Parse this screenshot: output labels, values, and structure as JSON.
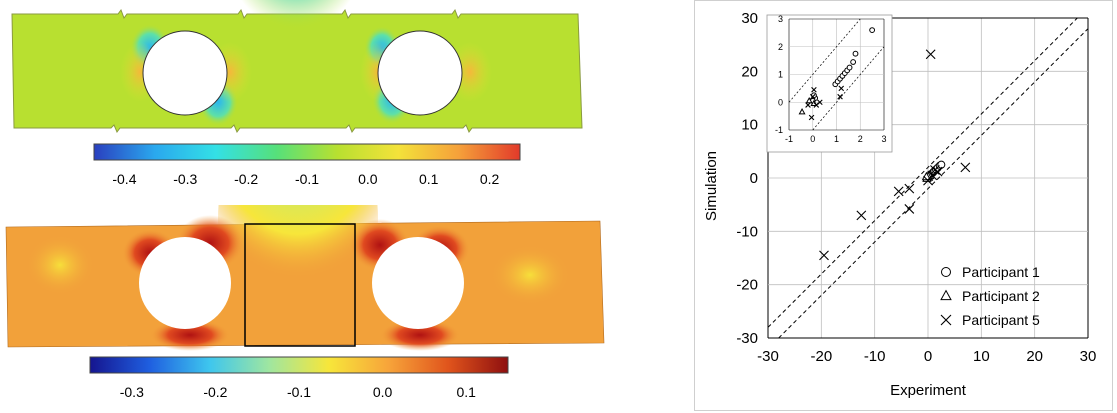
{
  "colors": {
    "plate_top_bg": "#b8e030",
    "plate_bottom_bg": "#f2a13a",
    "frame": "#000000",
    "grid": "#bfbfbf",
    "diag": "#000000"
  },
  "contour_top": {
    "colorbar_ticks": [
      "-0.4",
      "-0.3",
      "-0.2",
      "-0.1",
      "0.0",
      "0.1",
      "0.2"
    ],
    "colorbar_stops": [
      "#2a3fbf",
      "#2aa8ee",
      "#33e0e6",
      "#56e07a",
      "#b8e030",
      "#f4e23a",
      "#f5a03a",
      "#e23a2a"
    ]
  },
  "contour_bottom": {
    "colorbar_ticks": [
      "-0.3",
      "-0.2",
      "-0.1",
      "0.0",
      "0.1"
    ],
    "colorbar_stops": [
      "#15158f",
      "#1f5fe0",
      "#3ec6ee",
      "#9fe6a0",
      "#f7e63a",
      "#f7a43a",
      "#e0541c",
      "#8e0f0f"
    ]
  },
  "chart_data": {
    "type": "scatter",
    "title": "",
    "xlabel": "Experiment",
    "ylabel": "Simulation",
    "xlim": [
      -30,
      30
    ],
    "ylim": [
      -30,
      30
    ],
    "x_ticks": [
      "-30",
      "-20",
      "-10",
      "0",
      "10",
      "20",
      "30"
    ],
    "y_ticks": [
      "-30",
      "-20",
      "-10",
      "0",
      "10",
      "20",
      "30"
    ],
    "grid": true,
    "legend_position": "bottom-right",
    "series": [
      {
        "name": "Participant 1",
        "marker": "circle",
        "points": [
          [
            0.2,
            0.3
          ],
          [
            0.5,
            0.6
          ],
          [
            0.8,
            0.9
          ],
          [
            1.0,
            1.1
          ],
          [
            1.2,
            1.3
          ],
          [
            1.5,
            1.6
          ],
          [
            1.8,
            1.9
          ],
          [
            2.2,
            2.3
          ],
          [
            2.5,
            2.5
          ],
          [
            0.1,
            0.2
          ],
          [
            0.3,
            0.2
          ]
        ]
      },
      {
        "name": "Participant 2",
        "marker": "triangle",
        "points": [
          [
            0.1,
            0.1
          ],
          [
            -0.2,
            -0.1
          ],
          [
            0.3,
            0.4
          ],
          [
            0.0,
            0.3
          ],
          [
            -0.3,
            0.2
          ]
        ]
      },
      {
        "name": "Participant 5",
        "marker": "cross",
        "points": [
          [
            0.5,
            23.2
          ],
          [
            7.0,
            2.0
          ],
          [
            -19.5,
            -14.5
          ],
          [
            -12.5,
            -7.0
          ],
          [
            -5.5,
            -2.5
          ],
          [
            -3.5,
            -2.0
          ],
          [
            -3.5,
            -5.8
          ],
          [
            0.8,
            0.5
          ],
          [
            1.3,
            1.5
          ],
          [
            0.0,
            -0.5
          ],
          [
            1.8,
            1.2
          ]
        ]
      }
    ],
    "diagonals": [
      {
        "label": "y=x+2",
        "offset": 2
      },
      {
        "label": "y=x-2",
        "offset": -2
      }
    ],
    "inset": {
      "xlim": [
        -1,
        3
      ],
      "ylim": [
        -1,
        3
      ],
      "x_ticks": [
        "-1",
        "0",
        "1",
        "2",
        "3"
      ],
      "y_ticks": [
        "-1",
        "0",
        "1",
        "2",
        "3"
      ],
      "diag_offsets": [
        1,
        -1
      ],
      "series": [
        {
          "name": "Participant 1",
          "marker": "circle",
          "points": [
            [
              0.95,
              0.65
            ],
            [
              1.05,
              0.75
            ],
            [
              1.15,
              0.85
            ],
            [
              1.25,
              0.95
            ],
            [
              1.35,
              1.05
            ],
            [
              1.45,
              1.15
            ],
            [
              1.55,
              1.25
            ],
            [
              1.7,
              1.45
            ],
            [
              1.8,
              1.75
            ],
            [
              2.5,
              2.6
            ],
            [
              0.1,
              0.15
            ],
            [
              0.05,
              0.25
            ],
            [
              0.0,
              0.05
            ]
          ]
        },
        {
          "name": "Participant 2",
          "marker": "triangle",
          "points": [
            [
              -0.45,
              -0.35
            ],
            [
              -0.15,
              0.05
            ],
            [
              0.05,
              -0.05
            ]
          ]
        },
        {
          "name": "Participant 5",
          "marker": "cross",
          "points": [
            [
              0.05,
              0.45
            ],
            [
              -0.2,
              -0.1
            ],
            [
              0.15,
              -0.1
            ],
            [
              0.3,
              0.0
            ],
            [
              0.0,
              0.2
            ],
            [
              1.15,
              0.2
            ],
            [
              1.2,
              0.5
            ],
            [
              -0.05,
              -0.55
            ]
          ]
        }
      ]
    }
  }
}
